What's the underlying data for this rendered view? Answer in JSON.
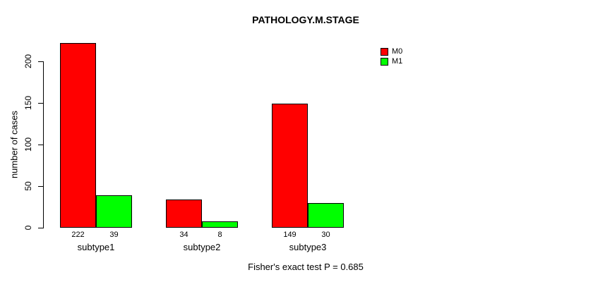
{
  "title": "PATHOLOGY.M.STAGE",
  "footer": "Fisher's exact test P = 0.685",
  "chart_data": {
    "type": "bar",
    "title": "PATHOLOGY.M.STAGE",
    "ylabel": "number of cases",
    "xlabel": "",
    "categories": [
      "subtype1",
      "subtype2",
      "subtype3"
    ],
    "series": [
      {
        "name": "M0",
        "color": "#ff0000",
        "values": [
          222,
          34,
          149
        ]
      },
      {
        "name": "M1",
        "color": "#00ff00",
        "values": [
          39,
          8,
          30
        ]
      }
    ],
    "bar_value_labels": [
      [
        222,
        39
      ],
      [
        34,
        8
      ],
      [
        149,
        30
      ]
    ],
    "yticks": [
      0,
      50,
      100,
      150,
      200
    ],
    "ylim": [
      0,
      222
    ],
    "grid": false,
    "legend_position": "top-right",
    "annotation": "Fisher's exact test P = 0.685"
  }
}
